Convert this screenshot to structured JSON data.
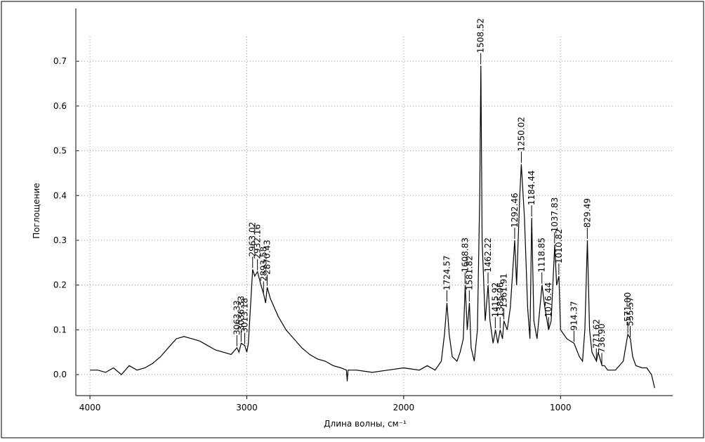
{
  "chart_data": {
    "type": "line",
    "xlabel": "Длина волны, см⁻¹",
    "ylabel": "Поглощение",
    "color": "#000000",
    "grid": true,
    "xlim": [
      4090,
      285
    ],
    "ylim": [
      -0.047,
      0.818
    ],
    "xticks": [
      4000,
      3000,
      2000,
      1000
    ],
    "yticks": [
      {
        "value": 0,
        "label": "0.0"
      },
      0.1,
      0.2,
      0.3,
      0.4,
      0.5,
      0.6,
      0.7
    ],
    "x": [
      4000,
      3950,
      3900,
      3850,
      3800,
      3750,
      3700,
      3650,
      3600,
      3550,
      3500,
      3450,
      3400,
      3350,
      3300,
      3250,
      3200,
      3150,
      3100,
      3063,
      3050,
      3036,
      3013,
      3000,
      2990,
      2963,
      2950,
      2932,
      2910,
      2893,
      2880,
      2870,
      2850,
      2800,
      2750,
      2700,
      2650,
      2600,
      2550,
      2500,
      2450,
      2400,
      2365,
      2360,
      2355,
      2340,
      2300,
      2200,
      2100,
      2000,
      1900,
      1850,
      1800,
      1760,
      1740,
      1724,
      1710,
      1690,
      1660,
      1640,
      1620,
      1608,
      1595,
      1581,
      1570,
      1550,
      1530,
      1515,
      1508,
      1500,
      1480,
      1462,
      1450,
      1430,
      1415,
      1400,
      1385,
      1370,
      1361,
      1340,
      1320,
      1292,
      1280,
      1260,
      1250,
      1230,
      1210,
      1195,
      1184,
      1170,
      1150,
      1118,
      1100,
      1076,
      1060,
      1037,
      1025,
      1010,
      1000,
      960,
      914,
      880,
      860,
      845,
      829,
      815,
      800,
      771,
      760,
      736,
      720,
      700,
      650,
      600,
      571,
      555,
      540,
      520,
      480,
      450,
      420,
      400
    ],
    "values": [
      0.01,
      0.01,
      0.005,
      0.015,
      0.0,
      0.02,
      0.01,
      0.015,
      0.025,
      0.04,
      0.06,
      0.08,
      0.085,
      0.08,
      0.075,
      0.065,
      0.055,
      0.05,
      0.045,
      0.06,
      0.05,
      0.07,
      0.065,
      0.05,
      0.07,
      0.235,
      0.22,
      0.23,
      0.2,
      0.18,
      0.16,
      0.195,
      0.17,
      0.13,
      0.1,
      0.08,
      0.06,
      0.045,
      0.035,
      0.03,
      0.02,
      0.015,
      0.01,
      -0.015,
      0.01,
      0.01,
      0.01,
      0.005,
      0.01,
      0.015,
      0.01,
      0.02,
      0.01,
      0.03,
      0.09,
      0.16,
      0.09,
      0.04,
      0.03,
      0.05,
      0.08,
      0.2,
      0.1,
      0.16,
      0.06,
      0.03,
      0.1,
      0.4,
      0.69,
      0.3,
      0.12,
      0.2,
      0.12,
      0.07,
      0.1,
      0.07,
      0.1,
      0.08,
      0.12,
      0.1,
      0.15,
      0.3,
      0.2,
      0.4,
      0.47,
      0.35,
      0.15,
      0.08,
      0.35,
      0.12,
      0.08,
      0.2,
      0.15,
      0.1,
      0.12,
      0.29,
      0.2,
      0.22,
      0.1,
      0.08,
      0.07,
      0.04,
      0.03,
      0.1,
      0.3,
      0.1,
      0.05,
      0.03,
      0.05,
      0.02,
      0.02,
      0.01,
      0.01,
      0.03,
      0.09,
      0.08,
      0.04,
      0.02,
      0.015,
      0.015,
      0.0,
      -0.03
    ],
    "peaks": [
      3063.33,
      3036.33,
      3013.18,
      2963.02,
      2932.16,
      2893.58,
      2870.43,
      1724.57,
      1608.83,
      1581.82,
      1508.52,
      1462.22,
      1415.92,
      1385.06,
      1361.91,
      1292.46,
      1250.02,
      1184.44,
      1118.85,
      1076.44,
      1037.83,
      1010.82,
      914.37,
      829.49,
      771.62,
      {
        "value": 736.9,
        "label": "736.90"
      },
      {
        "value": 571,
        "label": "571.00"
      },
      555.57
    ],
    "peak_y": [
      0.06,
      0.07,
      0.065,
      0.235,
      0.23,
      0.18,
      0.195,
      0.16,
      0.2,
      0.16,
      0.69,
      0.2,
      0.1,
      0.1,
      0.12,
      0.3,
      0.47,
      0.35,
      0.2,
      0.1,
      0.29,
      0.22,
      0.07,
      0.3,
      0.03,
      0.02,
      0.09,
      0.08
    ]
  }
}
